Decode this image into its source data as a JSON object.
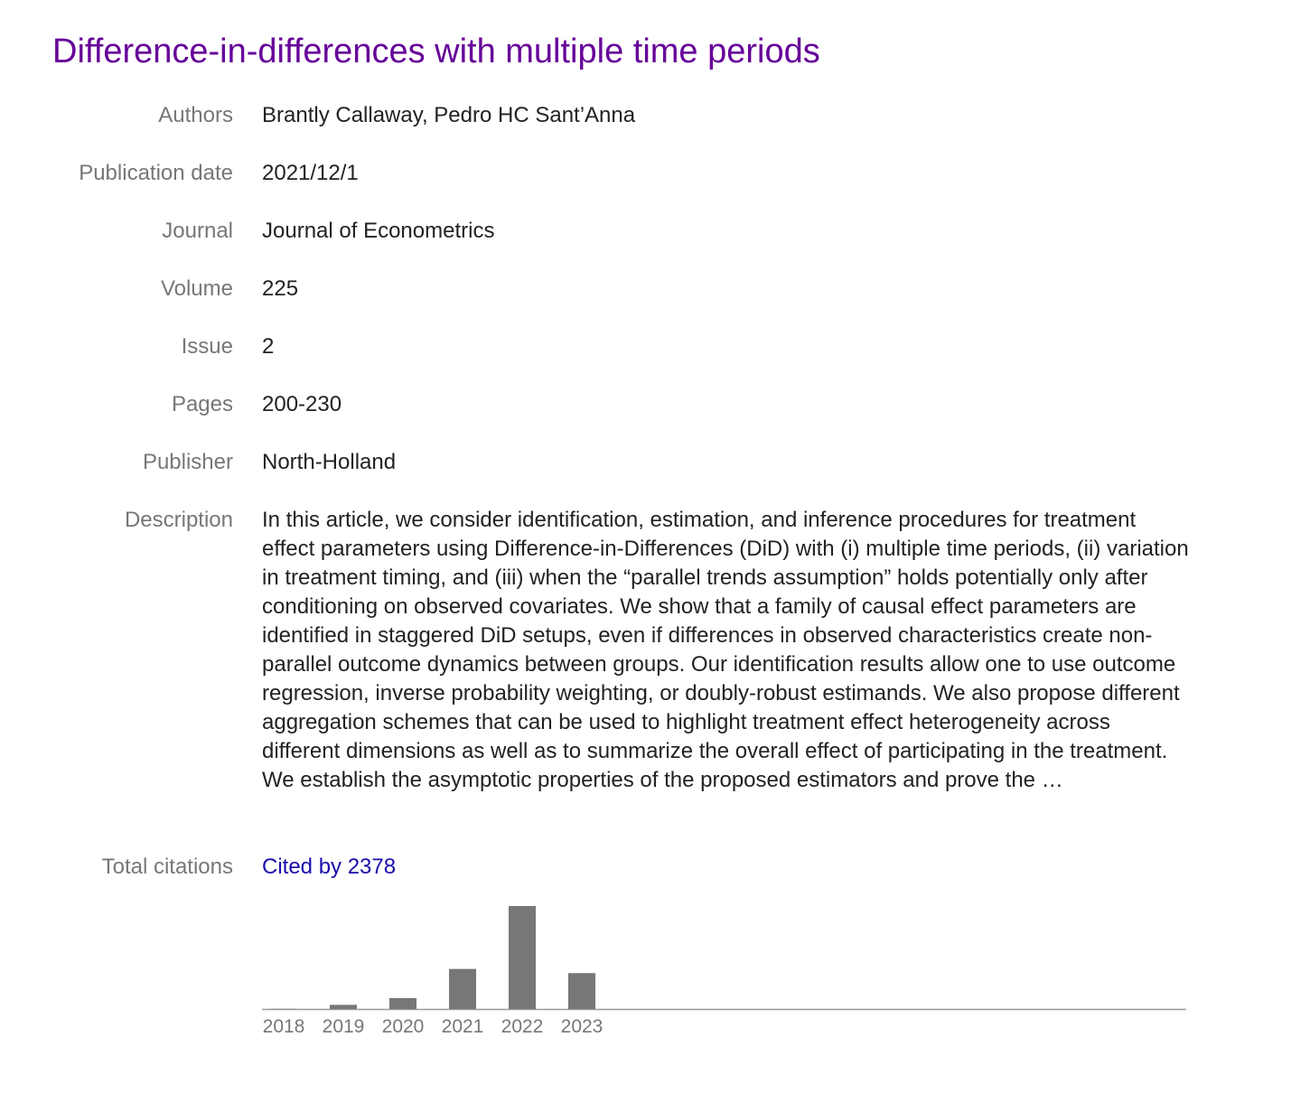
{
  "article": {
    "title": "Difference-in-differences with multiple time periods"
  },
  "fields": {
    "authors": {
      "label": "Authors",
      "value": "Brantly Callaway, Pedro HC Sant’Anna"
    },
    "publication_date": {
      "label": "Publication date",
      "value": "2021/12/1"
    },
    "journal": {
      "label": "Journal",
      "value": "Journal of Econometrics"
    },
    "volume": {
      "label": "Volume",
      "value": "225"
    },
    "issue": {
      "label": "Issue",
      "value": "2"
    },
    "pages": {
      "label": "Pages",
      "value": "200-230"
    },
    "publisher": {
      "label": "Publisher",
      "value": "North-Holland"
    },
    "description": {
      "label": "Description",
      "value": "In this article, we consider identification, estimation, and inference procedures for treatment effect parameters using Difference-in-Differences (DiD) with (i) multiple time periods, (ii) variation in treatment timing, and (iii) when the “parallel trends assumption” holds potentially only after conditioning on observed covariates. We show that a family of causal effect parameters are identified in staggered DiD setups, even if differences in observed characteristics create non-parallel outcome dynamics between groups. Our identification results allow one to use outcome regression, inverse probability weighting, or doubly-robust estimands. We also propose different aggregation schemes that can be used to highlight treatment effect heterogeneity across different dimensions as well as to summarize the overall effect of participating in the treatment. We establish the asymptotic properties of the proposed estimators and prove the …"
    },
    "total_citations": {
      "label": "Total citations",
      "link_text": "Cited by 2378"
    }
  },
  "colors": {
    "title": "#660099",
    "link": "#1a0dab",
    "label": "#777777",
    "bar": "#777777",
    "axis": "#999999"
  },
  "chart_data": {
    "type": "bar",
    "categories": [
      "2018",
      "2019",
      "2020",
      "2021",
      "2022",
      "2023"
    ],
    "values": [
      2,
      40,
      105,
      385,
      990,
      345
    ],
    "title": "",
    "xlabel": "",
    "ylabel": "",
    "ylim": [
      0,
      990
    ],
    "grid": false
  }
}
